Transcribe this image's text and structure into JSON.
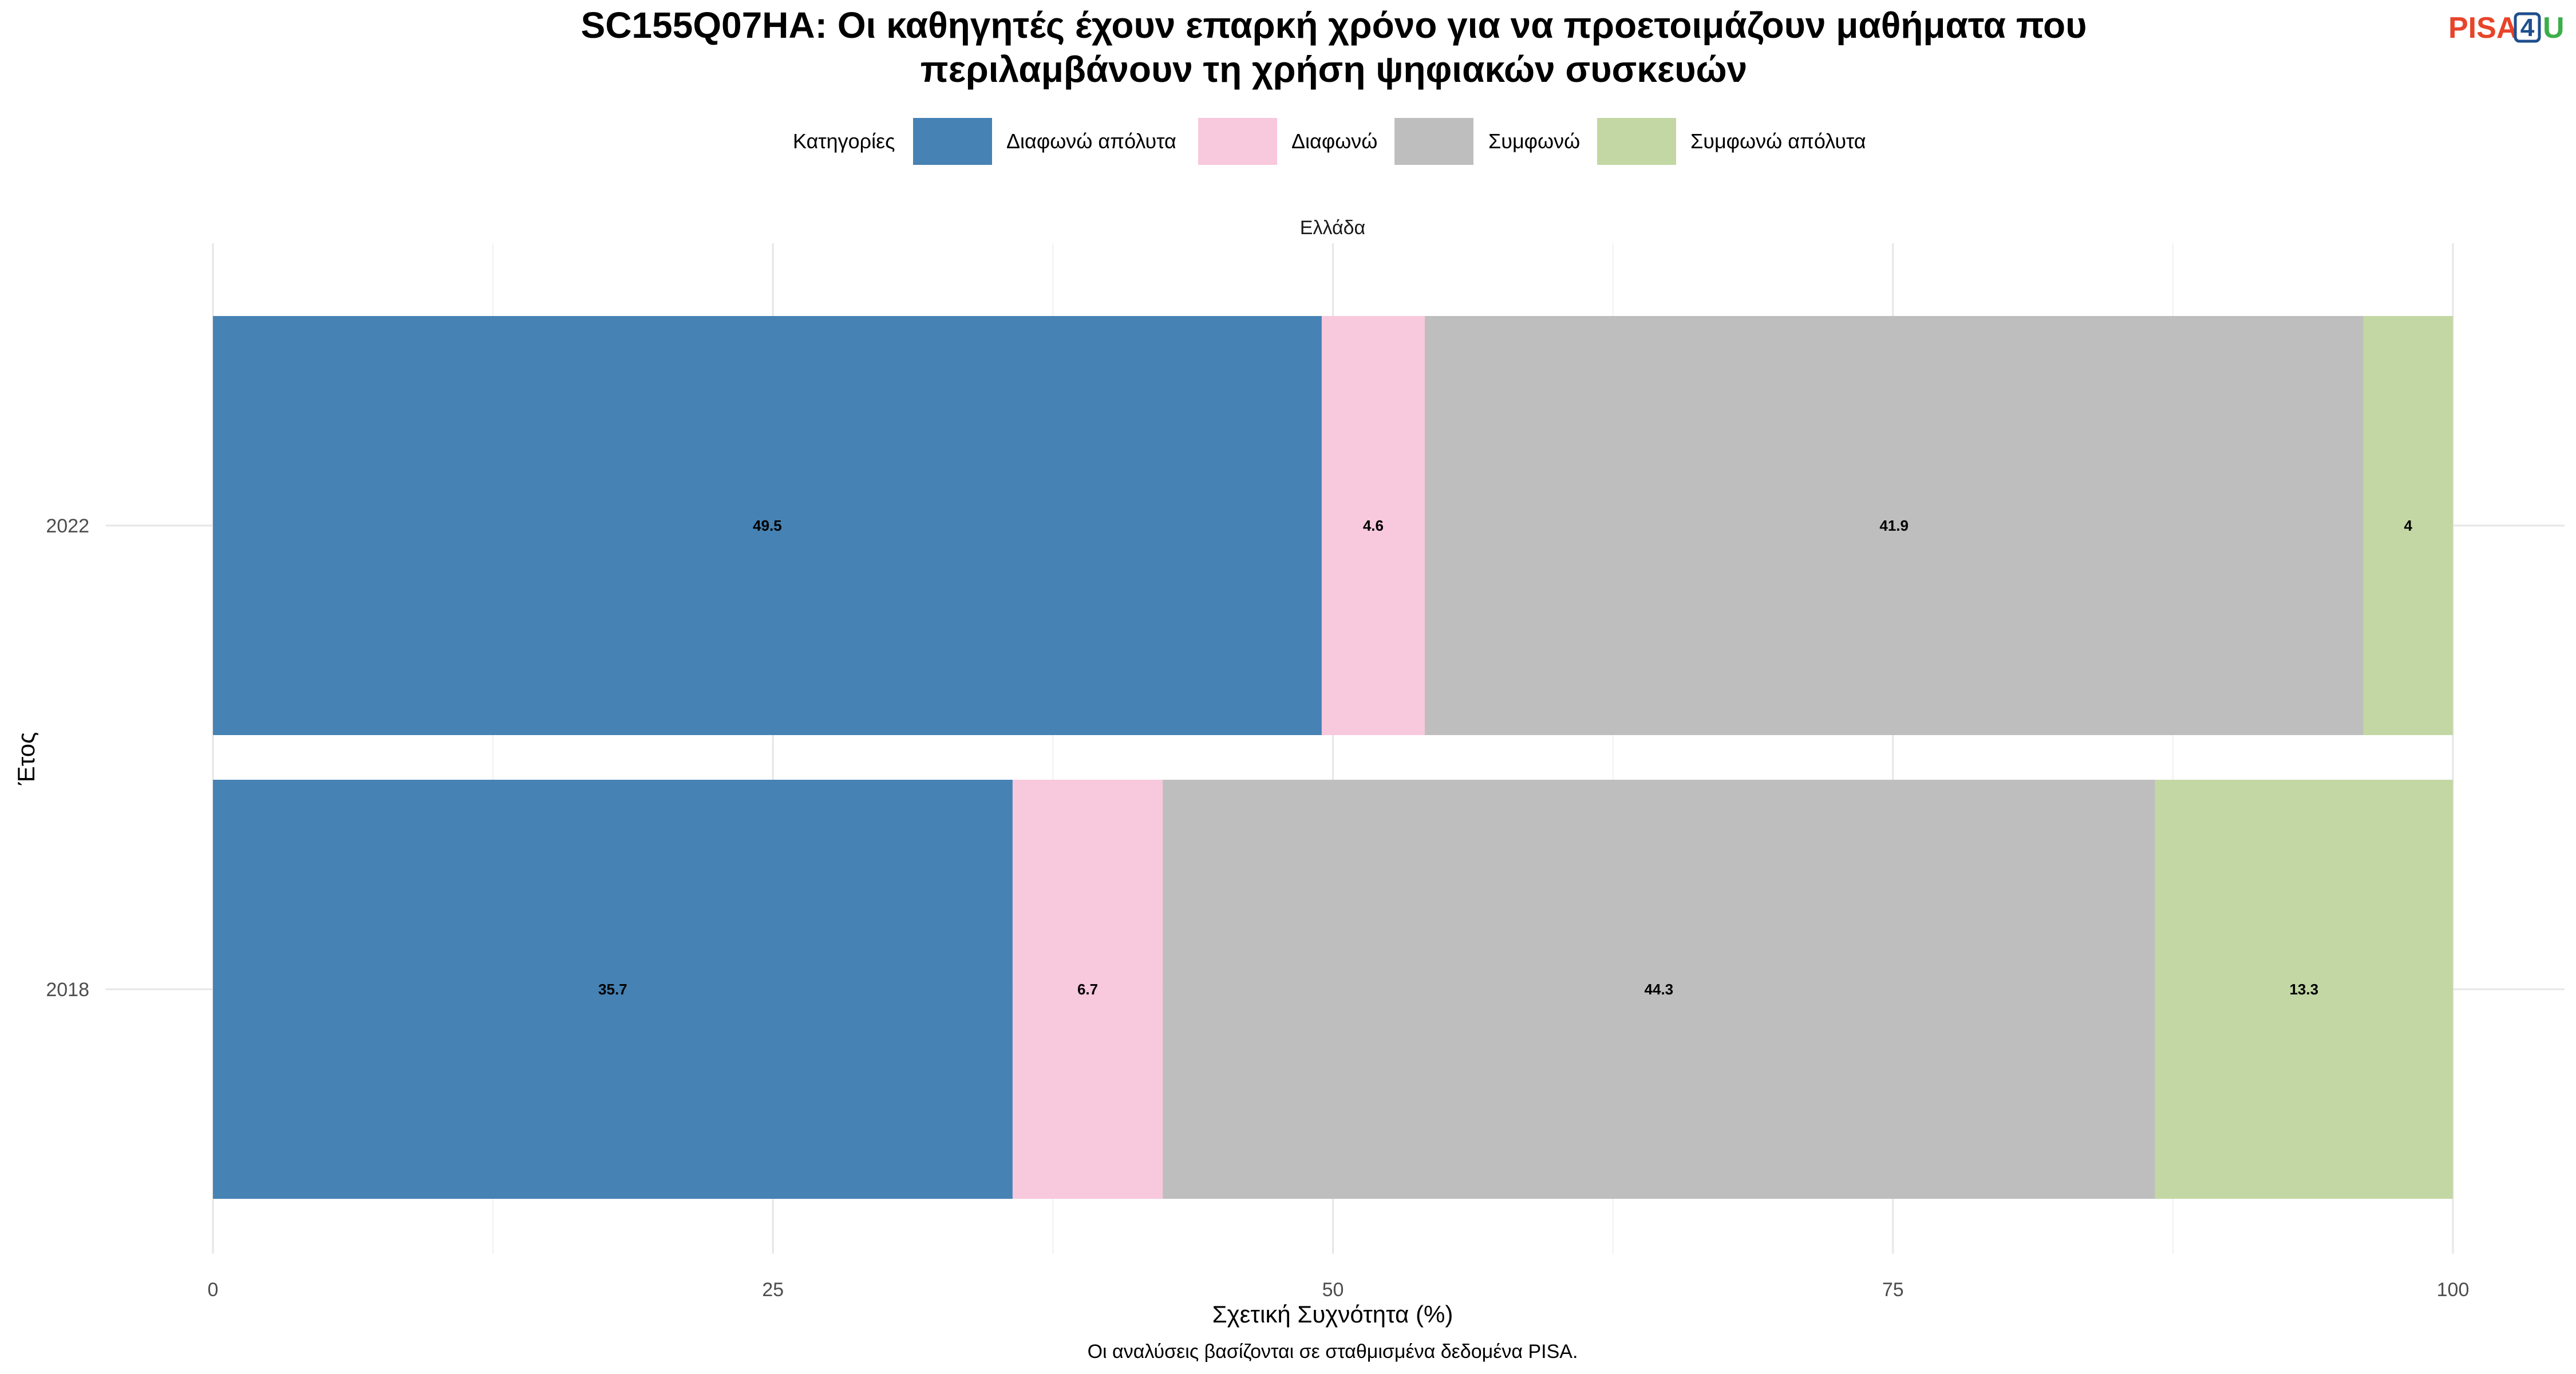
{
  "logo": {
    "pisa": "PISA",
    "four": "4",
    "u": "U"
  },
  "chart_data": {
    "type": "bar",
    "orientation": "horizontal",
    "stacked": true,
    "title_lines": [
      "SC155Q07HA: Οι καθηγητές έχουν επαρκή χρόνο για να προετοιμάζουν μαθήματα που",
      "περιλαμβάνουν τη χρήση ψηφιακών συσκευών"
    ],
    "facet_label": "Ελλάδα",
    "legend_title": "Κατηγορίες",
    "legend_position": "top",
    "categories": [
      "2022",
      "2018"
    ],
    "series": [
      {
        "name": "Διαφωνώ απόλυτα",
        "color": "#4682b4",
        "values": [
          49.5,
          35.7
        ]
      },
      {
        "name": "Διαφωνώ",
        "color": "#f8c8dc",
        "values": [
          4.6,
          6.7
        ]
      },
      {
        "name": "Συμφωνώ",
        "color": "#bebebe",
        "values": [
          41.9,
          44.3
        ]
      },
      {
        "name": "Συμφωνώ απόλυτα",
        "color": "#c3d7a4",
        "values": [
          4,
          13.3
        ]
      }
    ],
    "xlabel": "Σχετική Συχνότητα (%)",
    "ylabel": "Έτος",
    "xlim": [
      0,
      100
    ],
    "xticks": [
      0,
      25,
      50,
      75,
      100
    ],
    "grid": true,
    "caption": "Οι αναλύσεις βασίζονται σε σταθμισμένα δεδομένα PISA."
  }
}
